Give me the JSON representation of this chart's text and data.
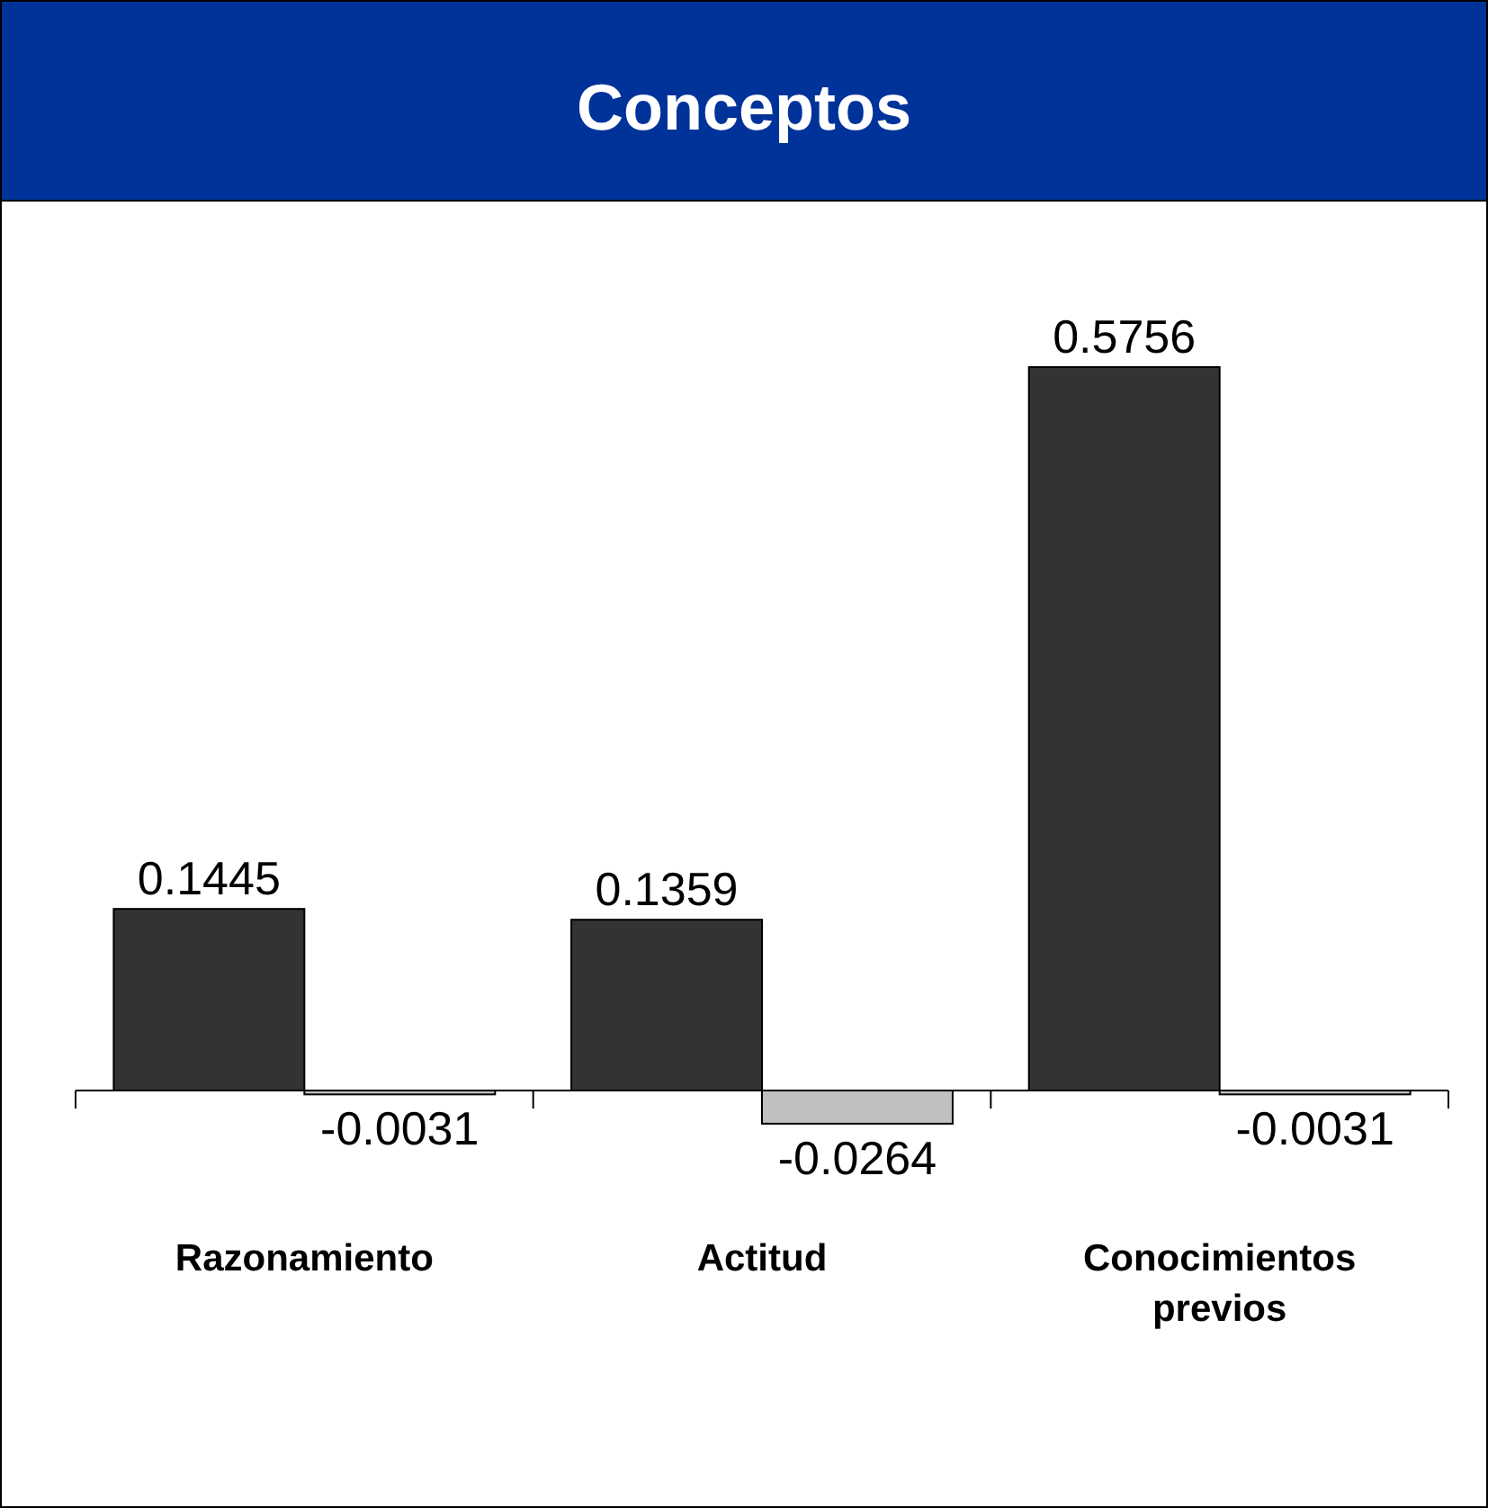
{
  "chart_data": {
    "type": "bar",
    "title": "Conceptos",
    "categories": [
      "Razonamiento",
      "Actitud",
      "Conocimientos previos"
    ],
    "series": [
      {
        "color": "#333333",
        "values": [
          0.1445,
          0.1359,
          0.5756
        ]
      },
      {
        "color": "#c0c0c0",
        "values": [
          -0.0031,
          -0.0264,
          -0.0031
        ]
      }
    ],
    "data_labels": true
  }
}
